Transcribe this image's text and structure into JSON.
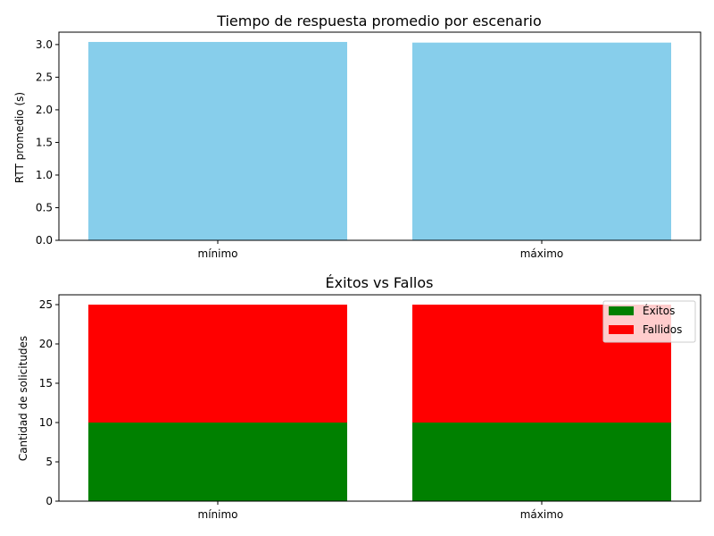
{
  "chart_data": [
    {
      "type": "bar",
      "title": "Tiempo de respuesta promedio por escenario",
      "xlabel": "",
      "ylabel": "RTT promedio (s)",
      "categories": [
        "mínimo",
        "máximo"
      ],
      "values": [
        3.04,
        3.03
      ],
      "ylim": [
        0,
        3.19
      ],
      "yticks": [
        "0.0",
        "0.5",
        "1.0",
        "1.5",
        "2.0",
        "2.5",
        "3.0"
      ],
      "grid": false,
      "colors": {
        "bar": "#87ceeb"
      }
    },
    {
      "type": "bar",
      "stacked": true,
      "title": "Éxitos vs Fallos",
      "xlabel": "",
      "ylabel": "Cantidad de solicitudes",
      "categories": [
        "mínimo",
        "máximo"
      ],
      "series": [
        {
          "name": "Éxitos",
          "values": [
            10,
            10
          ],
          "color": "#008000"
        },
        {
          "name": "Fallidos",
          "values": [
            15,
            15
          ],
          "color": "#ff0000"
        }
      ],
      "ylim": [
        0,
        26.25
      ],
      "yticks": [
        "0",
        "5",
        "10",
        "15",
        "20",
        "25"
      ],
      "grid": false,
      "legend": "top-right"
    }
  ]
}
